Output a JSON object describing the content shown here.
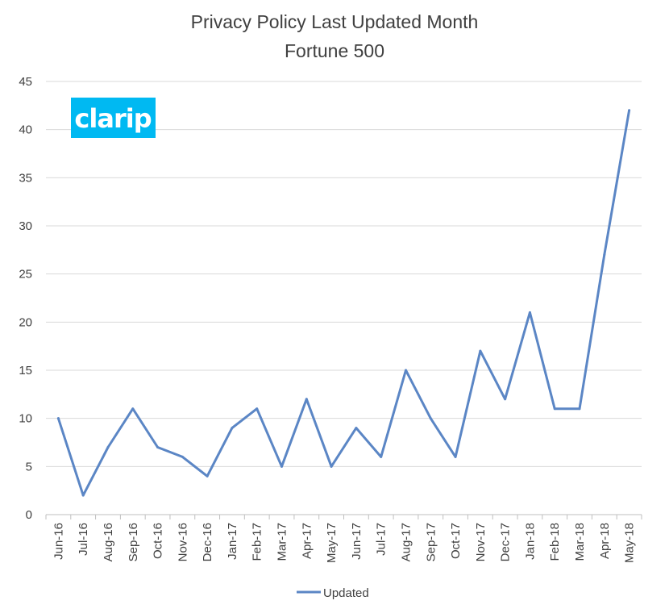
{
  "chart_data": {
    "type": "line",
    "title": "Privacy Policy Last Updated Month",
    "subtitle": "Fortune 500",
    "categories": [
      "Jun-16",
      "Jul-16",
      "Aug-16",
      "Sep-16",
      "Oct-16",
      "Nov-16",
      "Dec-16",
      "Jan-17",
      "Feb-17",
      "Mar-17",
      "Apr-17",
      "May-17",
      "Jun-17",
      "Jul-17",
      "Aug-17",
      "Sep-17",
      "Oct-17",
      "Nov-17",
      "Dec-17",
      "Jan-18",
      "Feb-18",
      "Mar-18",
      "Apr-18",
      "May-18"
    ],
    "series": [
      {
        "name": "Updated",
        "color": "#5B86C5",
        "values": [
          10,
          2,
          7,
          11,
          7,
          6,
          4,
          9,
          11,
          5,
          12,
          5,
          9,
          6,
          15,
          10,
          6,
          17,
          12,
          21,
          11,
          11,
          27,
          42
        ]
      }
    ],
    "ylim": [
      0,
      45
    ],
    "yticks": [
      0,
      5,
      10,
      15,
      20,
      25,
      30,
      35,
      40,
      45
    ],
    "grid": true,
    "legend_position": "bottom",
    "logo_text": "clarip",
    "logo_color": "#00B9F2"
  }
}
